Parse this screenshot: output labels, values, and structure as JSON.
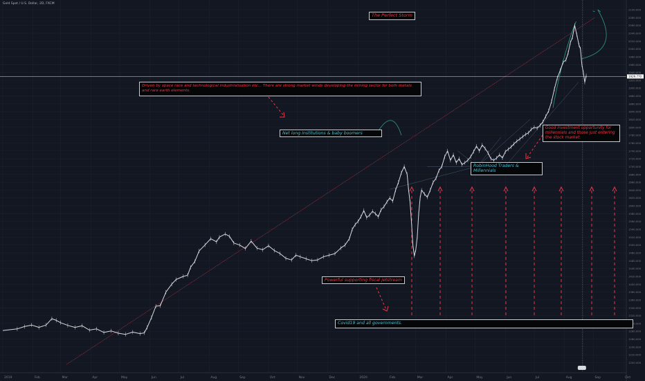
{
  "header": {
    "symbol": "Gold Spot / U.S. Dollar, 2D, FXCM"
  },
  "theme": {
    "background": "#131722",
    "price_line": "#d8dbe2",
    "grid": "#1f2433",
    "red": "#f23645",
    "trend_red": "#8a2f3e",
    "green_arc": "#2a8f7a",
    "cyan_text": "#4fc3d9",
    "axis_text": "#787b86"
  },
  "annotations": {
    "perfect_storm": "The Perfect Storm",
    "space_race": "Driven by space race and technological industrialisation  etc... There are strong market winds developing the mining sector for both metals and rare earth elements.",
    "net_long": "Net long Institutions & baby boomers",
    "robinhood": "RobinHood Traders &   Millennials",
    "good_investment": "Good investment opportunity for millennials and those just entering the stock market.",
    "fiscal_jetstream": "Powerful supporting fiscal jetstream",
    "covid": "Covid19 and all governments."
  },
  "chart_data": {
    "type": "line",
    "title": "",
    "xlabel": "",
    "ylabel": "",
    "x_ticks": [
      "2019",
      "Feb",
      "Mar",
      "Apr",
      "May",
      "Jun",
      "Jul",
      "Aug",
      "Sep",
      "Oct",
      "Nov",
      "Dec",
      "2020",
      "Feb",
      "Mar",
      "Apr",
      "May",
      "Jun",
      "Jul",
      "Aug",
      "Sep",
      "Oct"
    ],
    "y_ticks": [
      1200,
      1220,
      1240,
      1260,
      1280,
      1300,
      1320,
      1340,
      1360,
      1380,
      1400,
      1420,
      1440,
      1460,
      1480,
      1500,
      1520,
      1540,
      1560,
      1580,
      1600,
      1620,
      1640,
      1660,
      1680,
      1700,
      1720,
      1740,
      1760,
      1780,
      1800,
      1820,
      1840,
      1860,
      1880,
      1900,
      1920,
      1940,
      1960,
      1980,
      2000,
      2020,
      2040,
      2060,
      2080,
      2100
    ],
    "ylim": [
      1185,
      2100
    ],
    "current_price_label": "1929.770",
    "series": [
      {
        "values": [
          [
            0,
            1282
          ],
          [
            1,
            1286
          ],
          [
            1.5,
            1292
          ],
          [
            2,
            1296
          ],
          [
            2.5,
            1290
          ],
          [
            3,
            1296
          ],
          [
            3.4,
            1312
          ],
          [
            3.7,
            1308
          ],
          [
            4,
            1302
          ],
          [
            4.5,
            1295
          ],
          [
            5,
            1290
          ],
          [
            5.5,
            1294
          ],
          [
            6,
            1283
          ],
          [
            6.5,
            1286
          ],
          [
            7,
            1277
          ],
          [
            7.5,
            1281
          ],
          [
            8,
            1275
          ],
          [
            8.5,
            1272
          ],
          [
            9,
            1278
          ],
          [
            9.5,
            1274
          ],
          [
            9.8,
            1276
          ],
          [
            10,
            1290
          ],
          [
            10.3,
            1315
          ],
          [
            10.6,
            1344
          ],
          [
            10.9,
            1345
          ],
          [
            11.3,
            1380
          ],
          [
            11.7,
            1400
          ],
          [
            12,
            1412
          ],
          [
            12.5,
            1420
          ],
          [
            12.8,
            1423
          ],
          [
            13,
            1443
          ],
          [
            13.3,
            1458
          ],
          [
            13.6,
            1485
          ],
          [
            14,
            1500
          ],
          [
            14.4,
            1516
          ],
          [
            14.8,
            1508
          ],
          [
            15,
            1520
          ],
          [
            15.4,
            1528
          ],
          [
            15.7,
            1522
          ],
          [
            16,
            1505
          ],
          [
            16.4,
            1500
          ],
          [
            16.8,
            1491
          ],
          [
            17.2,
            1510
          ],
          [
            17.6,
            1492
          ],
          [
            18,
            1488
          ],
          [
            18.4,
            1498
          ],
          [
            18.8,
            1486
          ],
          [
            19.2,
            1478
          ],
          [
            19.6,
            1466
          ],
          [
            20,
            1462
          ],
          [
            20.3,
            1474
          ],
          [
            20.6,
            1470
          ],
          [
            21,
            1465
          ],
          [
            21.4,
            1460
          ],
          [
            21.8,
            1462
          ],
          [
            22.2,
            1470
          ],
          [
            22.6,
            1474
          ],
          [
            23,
            1478
          ],
          [
            23.4,
            1492
          ],
          [
            23.7,
            1500
          ],
          [
            24,
            1516
          ],
          [
            24.2,
            1540
          ],
          [
            24.4,
            1552
          ],
          [
            24.6,
            1560
          ],
          [
            24.8,
            1572
          ],
          [
            25,
            1588
          ],
          [
            25.2,
            1570
          ],
          [
            25.4,
            1576
          ],
          [
            25.6,
            1586
          ],
          [
            25.8,
            1580
          ],
          [
            26,
            1572
          ],
          [
            26.2,
            1590
          ],
          [
            26.4,
            1598
          ],
          [
            26.6,
            1610
          ],
          [
            26.8,
            1620
          ],
          [
            27,
            1612
          ],
          [
            27.2,
            1640
          ],
          [
            27.4,
            1660
          ],
          [
            27.6,
            1684
          ],
          [
            27.8,
            1700
          ],
          [
            28,
            1680
          ],
          [
            28.1,
            1640
          ],
          [
            28.2,
            1610
          ],
          [
            28.3,
            1560
          ],
          [
            28.4,
            1500
          ],
          [
            28.5,
            1472
          ],
          [
            28.6,
            1488
          ],
          [
            28.7,
            1520
          ],
          [
            28.8,
            1580
          ],
          [
            28.9,
            1620
          ],
          [
            29,
            1640
          ],
          [
            29.2,
            1630
          ],
          [
            29.4,
            1622
          ],
          [
            29.6,
            1640
          ],
          [
            29.8,
            1660
          ],
          [
            30,
            1670
          ],
          [
            30.2,
            1690
          ],
          [
            30.4,
            1700
          ],
          [
            30.6,
            1725
          ],
          [
            30.8,
            1740
          ],
          [
            31,
            1716
          ],
          [
            31.2,
            1730
          ],
          [
            31.4,
            1710
          ],
          [
            31.6,
            1720
          ],
          [
            31.8,
            1705
          ],
          [
            32,
            1710
          ],
          [
            32.2,
            1716
          ],
          [
            32.4,
            1725
          ],
          [
            32.6,
            1738
          ],
          [
            32.8,
            1752
          ],
          [
            33,
            1740
          ],
          [
            33.2,
            1755
          ],
          [
            33.4,
            1746
          ],
          [
            33.6,
            1735
          ],
          [
            33.8,
            1720
          ],
          [
            34,
            1716
          ],
          [
            34.2,
            1722
          ],
          [
            34.4,
            1730
          ],
          [
            34.6,
            1722
          ],
          [
            34.8,
            1738
          ],
          [
            35,
            1744
          ],
          [
            35.2,
            1750
          ],
          [
            35.4,
            1758
          ],
          [
            35.6,
            1765
          ],
          [
            35.8,
            1770
          ],
          [
            36,
            1776
          ],
          [
            36.2,
            1782
          ],
          [
            36.4,
            1786
          ],
          [
            36.6,
            1795
          ],
          [
            36.8,
            1800
          ],
          [
            37,
            1798
          ],
          [
            37.2,
            1805
          ],
          [
            37.4,
            1814
          ],
          [
            37.6,
            1828
          ],
          [
            37.8,
            1842
          ],
          [
            38,
            1866
          ],
          [
            38.2,
            1898
          ],
          [
            38.4,
            1926
          ],
          [
            38.6,
            1945
          ],
          [
            38.8,
            1966
          ],
          [
            39,
            1972
          ],
          [
            39.15,
            1990
          ],
          [
            39.3,
            2016
          ],
          [
            39.45,
            2030
          ],
          [
            39.6,
            2060
          ],
          [
            39.75,
            2036
          ],
          [
            39.9,
            2010
          ],
          [
            40,
            2000
          ],
          [
            40.1,
            1960
          ],
          [
            40.2,
            1940
          ],
          [
            40.3,
            1915
          ],
          [
            40.4,
            1932
          ]
        ]
      }
    ]
  }
}
